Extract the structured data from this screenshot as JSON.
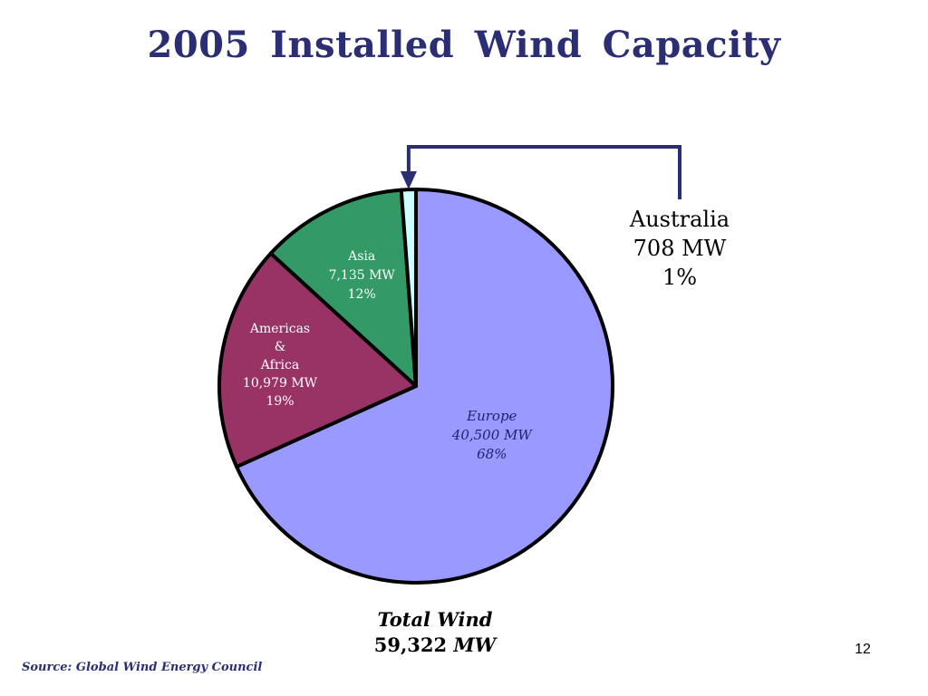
{
  "slide": {
    "title": "2005  Installed  Wind  Capacity",
    "source_prefix": "Source:",
    "source_text": "Global Wind Energy Council",
    "page_number": "12"
  },
  "chart_data": {
    "type": "pie",
    "title": "2005  Installed  Wind  Capacity",
    "slices": [
      {
        "key": "europe",
        "value": 40500,
        "name": "Europe",
        "label_lines": [
          "Europe",
          "40,500 MW",
          "68%"
        ],
        "color": "#9999FF"
      },
      {
        "key": "americas_africa",
        "value": 10979,
        "name": "Americas & Africa",
        "label_lines": [
          "Americas",
          "&",
          "Africa",
          "10,979 MW",
          "19%"
        ],
        "color": "#993366"
      },
      {
        "key": "asia",
        "value": 7135,
        "name": "Asia",
        "label_lines": [
          "Asia",
          "7,135 MW",
          "12%"
        ],
        "color": "#339966"
      },
      {
        "key": "australia",
        "value": 708,
        "name": "Australia",
        "label_lines": [
          "Australia",
          "708 MW",
          "1%"
        ],
        "color": "#CCFFFF"
      }
    ],
    "total": {
      "label": "Total Wind",
      "value_number": "59,322",
      "value_unit": "MW"
    },
    "callout_color": "#2B2E74"
  }
}
